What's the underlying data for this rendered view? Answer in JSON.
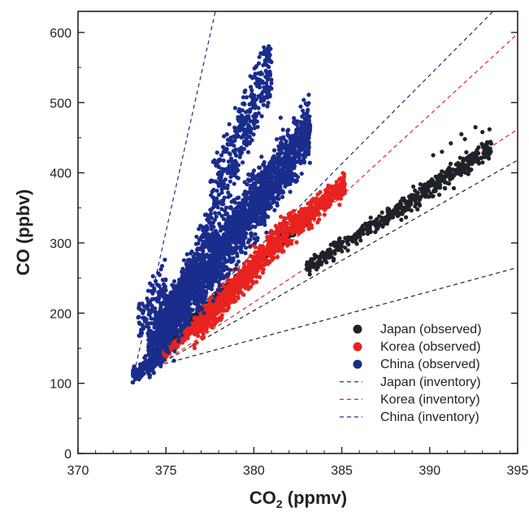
{
  "chart_data": {
    "type": "scatter",
    "xlabel": "CO2 (ppmv)",
    "xlabel_main": "CO",
    "xlabel_sub": "2",
    "xlabel_unit": " (ppmv)",
    "ylabel": "CO (ppbv)",
    "xlim": [
      370,
      395
    ],
    "ylim": [
      0,
      630
    ],
    "xticks": [
      370,
      375,
      380,
      385,
      390,
      395
    ],
    "yticks": [
      0,
      100,
      200,
      300,
      400,
      500,
      600
    ],
    "grid": false,
    "legend_position": "bottom-right",
    "colors": {
      "japan": "#1f2328",
      "korea": "#e8231f",
      "china": "#1a2c8c"
    },
    "series": [
      {
        "name": "Japan (observed)",
        "kind": "observed",
        "color": "#1f2328",
        "clusters": [
          {
            "x0": 373.6,
            "x1": 378.0,
            "slope": 24.0,
            "intercept": 120,
            "spread": 4,
            "n": 260
          },
          {
            "x0": 378.0,
            "x1": 383.0,
            "slope": 22.0,
            "intercept": 225,
            "spread": 5,
            "n": 380
          },
          {
            "x0": 383.0,
            "x1": 388.0,
            "slope": 16.0,
            "intercept": 265,
            "spread": 8,
            "n": 230
          },
          {
            "x0": 388.0,
            "x1": 393.5,
            "slope": 16.5,
            "intercept": 345,
            "spread": 10,
            "n": 330
          }
        ],
        "outliers": [
          [
            392.6,
            465
          ],
          [
            393.4,
            462
          ],
          [
            391.2,
            442
          ],
          [
            390.7,
            430
          ],
          [
            392.0,
            448
          ],
          [
            393.0,
            458
          ],
          [
            391.8,
            455
          ],
          [
            390.2,
            425
          ]
        ]
      },
      {
        "name": "Korea (observed)",
        "kind": "observed",
        "color": "#e8231f",
        "clusters": [
          {
            "x0": 374.7,
            "x1": 376.6,
            "slope": 25.0,
            "intercept": 135,
            "spread": 5,
            "n": 220
          },
          {
            "x0": 376.6,
            "x1": 379.0,
            "slope": 27.0,
            "intercept": 175,
            "spread": 14,
            "n": 420
          },
          {
            "x0": 379.0,
            "x1": 382.4,
            "slope": 27.0,
            "intercept": 240,
            "spread": 16,
            "n": 380
          },
          {
            "x0": 382.4,
            "x1": 385.2,
            "slope": 22.0,
            "intercept": 325,
            "spread": 12,
            "n": 320
          }
        ],
        "outliers": []
      },
      {
        "name": "China (observed)",
        "kind": "observed",
        "color": "#1a2c8c",
        "clusters": [
          {
            "x0": 373.1,
            "x1": 374.6,
            "slope": 15.0,
            "intercept": 112,
            "spread": 7,
            "n": 160
          },
          {
            "x0": 374.0,
            "x1": 383.2,
            "slope": 34.0,
            "intercept": 150,
            "spread": 30,
            "n": 2400
          },
          {
            "x0": 375.5,
            "x1": 381.0,
            "slope": 58.0,
            "intercept": 215,
            "spread": 20,
            "n": 320
          },
          {
            "x0": 377.5,
            "x1": 381.0,
            "slope": 58.0,
            "intercept": 375,
            "spread": 22,
            "n": 180
          },
          {
            "x0": 373.4,
            "x1": 375.0,
            "slope": 45.0,
            "intercept": 180,
            "spread": 22,
            "n": 90
          }
        ],
        "outliers": [
          [
            380.8,
            540
          ],
          [
            380.5,
            530
          ],
          [
            381.0,
            520
          ],
          [
            379.6,
            480
          ],
          [
            378.3,
            452
          ]
        ]
      },
      {
        "name": "Japan (inventory)",
        "kind": "inventory",
        "color": "#1f2328",
        "line": [
          [
            374.5,
            125
          ],
          [
            395,
            418
          ]
        ]
      },
      {
        "name": "Japan (inventory)",
        "kind": "inventory-low",
        "color": "#1f2328",
        "line": [
          [
            374.5,
            125
          ],
          [
            395,
            265
          ]
        ],
        "legend": false
      },
      {
        "name": "Korea (inventory)",
        "kind": "inventory",
        "color": "#e8231f",
        "line": [
          [
            374.5,
            125
          ],
          [
            395,
            598
          ]
        ]
      },
      {
        "name": "Korea (inventory)",
        "kind": "inventory-low",
        "color": "#e8231f",
        "line": [
          [
            374.5,
            125
          ],
          [
            395,
            462
          ]
        ],
        "legend": false
      },
      {
        "name": "China (inventory)",
        "kind": "inventory",
        "color": "#1a2c8c",
        "line": [
          [
            373.2,
            115
          ],
          [
            394.0,
            640
          ]
        ]
      },
      {
        "name": "China (inventory)",
        "kind": "inventory-steep",
        "color": "#1a2c8c",
        "line": [
          [
            373.2,
            115
          ],
          [
            377.9,
            640
          ]
        ],
        "legend": false
      }
    ],
    "legend": [
      {
        "label": "Japan (observed)",
        "marker": "dot",
        "color": "#1f2328"
      },
      {
        "label": "Korea (observed)",
        "marker": "dot",
        "color": "#e8231f"
      },
      {
        "label": "China (observed)",
        "marker": "dot",
        "color": "#1a2c8c"
      },
      {
        "label": "Japan (inventory)",
        "marker": "dash",
        "color": "#1f2328"
      },
      {
        "label": "Korea (inventory)",
        "marker": "dash",
        "color": "#e8231f"
      },
      {
        "label": "China (inventory)",
        "marker": "dash",
        "color": "#1a2c8c"
      }
    ]
  }
}
